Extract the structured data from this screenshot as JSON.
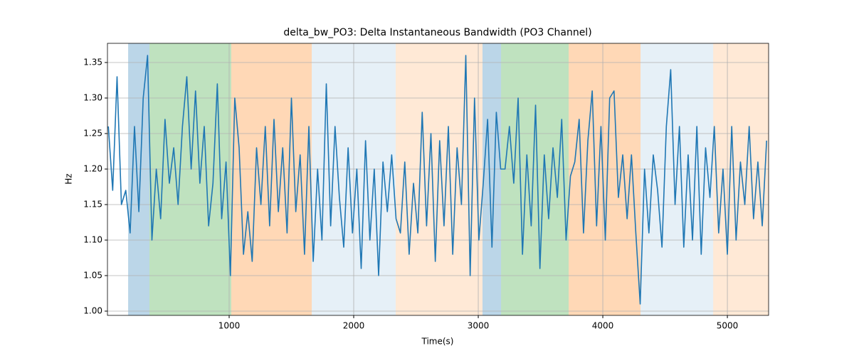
{
  "chart_data": {
    "type": "line",
    "title": "delta_bw_PO3: Delta Instantaneous Bandwidth (PO3 Channel)",
    "xlabel": "Time(s)",
    "ylabel": "Hz",
    "xlim": [
      23,
      5331
    ],
    "ylim": [
      0.994,
      1.377
    ],
    "xticks": [
      1000,
      2000,
      3000,
      4000,
      5000
    ],
    "yticks": [
      {
        "value": 1.0,
        "label": "1.00"
      },
      1.05,
      {
        "value": 1.1,
        "label": "1.10"
      },
      1.15,
      {
        "value": 1.2,
        "label": "1.20"
      },
      1.25,
      {
        "value": 1.3,
        "label": "1.30"
      },
      1.35
    ],
    "grid": true,
    "spans": [
      {
        "x0": 189,
        "x1": 360,
        "color": "rgba(31,119,180,0.3)"
      },
      {
        "x0": 360,
        "x1": 1017,
        "color": "rgba(44,160,44,0.3)"
      },
      {
        "x0": 1017,
        "x1": 1663,
        "color": "rgba(255,127,14,0.3)"
      },
      {
        "x0": 1663,
        "x1": 2337,
        "color": "rgba(31,119,180,0.11)"
      },
      {
        "x0": 2337,
        "x1": 3034,
        "color": "rgba(255,127,14,0.17)"
      },
      {
        "x0": 3034,
        "x1": 3183,
        "color": "rgba(31,119,180,0.3)"
      },
      {
        "x0": 3183,
        "x1": 3726,
        "color": "rgba(44,160,44,0.3)"
      },
      {
        "x0": 3726,
        "x1": 4303,
        "color": "rgba(255,127,14,0.3)"
      },
      {
        "x0": 4303,
        "x1": 4886,
        "color": "rgba(31,119,180,0.11)"
      },
      {
        "x0": 4886,
        "x1": 5331,
        "color": "rgba(255,127,14,0.17)"
      }
    ],
    "x": [
      30,
      65,
      100,
      135,
      170,
      205,
      240,
      275,
      310,
      345,
      380,
      415,
      450,
      485,
      520,
      555,
      590,
      625,
      660,
      695,
      730,
      765,
      800,
      835,
      870,
      905,
      940,
      975,
      1010,
      1045,
      1080,
      1115,
      1150,
      1185,
      1220,
      1255,
      1290,
      1325,
      1360,
      1395,
      1430,
      1465,
      1500,
      1535,
      1570,
      1605,
      1640,
      1675,
      1710,
      1745,
      1780,
      1815,
      1850,
      1885,
      1920,
      1955,
      1990,
      2025,
      2060,
      2095,
      2130,
      2165,
      2200,
      2235,
      2270,
      2305,
      2340,
      2375,
      2410,
      2445,
      2480,
      2515,
      2550,
      2585,
      2620,
      2655,
      2690,
      2725,
      2760,
      2795,
      2830,
      2865,
      2900,
      2935,
      2970,
      3005,
      3040,
      3075,
      3110,
      3145,
      3180,
      3215,
      3250,
      3285,
      3320,
      3355,
      3390,
      3425,
      3460,
      3495,
      3530,
      3565,
      3600,
      3635,
      3670,
      3705,
      3740,
      3775,
      3810,
      3845,
      3880,
      3915,
      3950,
      3985,
      4020,
      4055,
      4090,
      4125,
      4160,
      4195,
      4230,
      4265,
      4300,
      4335,
      4370,
      4405,
      4440,
      4475,
      4510,
      4545,
      4580,
      4615,
      4650,
      4685,
      4720,
      4755,
      4790,
      4825,
      4860,
      4895,
      4930,
      4965,
      5000,
      5035,
      5070,
      5105,
      5140,
      5175,
      5210,
      5245,
      5280,
      5315
    ],
    "series": [
      {
        "color": "#1f77b4",
        "values": [
          1.26,
          1.17,
          1.33,
          1.15,
          1.17,
          1.11,
          1.26,
          1.14,
          1.3,
          1.36,
          1.1,
          1.2,
          1.13,
          1.27,
          1.18,
          1.23,
          1.15,
          1.26,
          1.33,
          1.2,
          1.31,
          1.18,
          1.26,
          1.12,
          1.18,
          1.32,
          1.13,
          1.21,
          1.05,
          1.3,
          1.23,
          1.08,
          1.14,
          1.07,
          1.23,
          1.15,
          1.26,
          1.12,
          1.27,
          1.14,
          1.23,
          1.11,
          1.3,
          1.14,
          1.22,
          1.08,
          1.26,
          1.07,
          1.2,
          1.1,
          1.32,
          1.12,
          1.26,
          1.16,
          1.09,
          1.23,
          1.11,
          1.2,
          1.06,
          1.24,
          1.1,
          1.2,
          1.05,
          1.21,
          1.14,
          1.22,
          1.13,
          1.11,
          1.21,
          1.08,
          1.18,
          1.11,
          1.28,
          1.12,
          1.25,
          1.07,
          1.24,
          1.12,
          1.26,
          1.08,
          1.23,
          1.15,
          1.36,
          1.05,
          1.3,
          1.1,
          1.18,
          1.27,
          1.09,
          1.28,
          1.2,
          1.2,
          1.26,
          1.18,
          1.3,
          1.08,
          1.22,
          1.12,
          1.29,
          1.06,
          1.22,
          1.13,
          1.23,
          1.16,
          1.27,
          1.1,
          1.19,
          1.21,
          1.27,
          1.11,
          1.24,
          1.31,
          1.12,
          1.26,
          1.1,
          1.3,
          1.31,
          1.16,
          1.22,
          1.13,
          1.22,
          1.11,
          1.01,
          1.2,
          1.11,
          1.22,
          1.17,
          1.09,
          1.26,
          1.34,
          1.15,
          1.26,
          1.09,
          1.22,
          1.1,
          1.26,
          1.08,
          1.23,
          1.16,
          1.26,
          1.11,
          1.2,
          1.08,
          1.26,
          1.1,
          1.21,
          1.15,
          1.26,
          1.13,
          1.21,
          1.12,
          1.24
        ]
      }
    ]
  }
}
